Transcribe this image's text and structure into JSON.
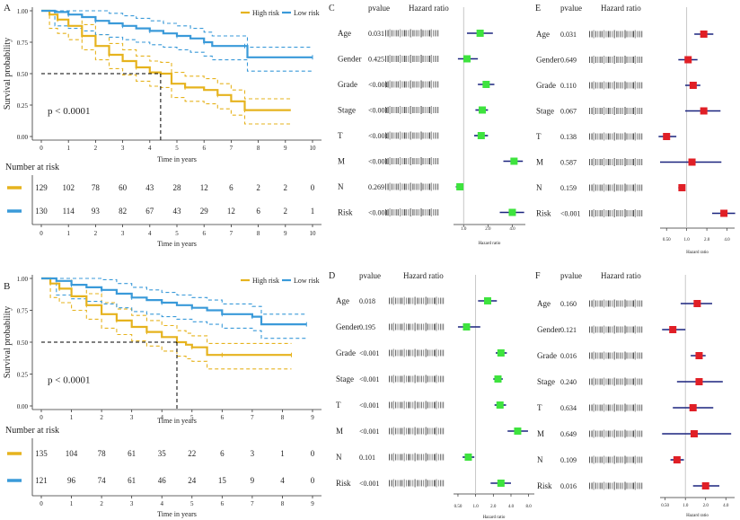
{
  "colors": {
    "high": "#E6B31E",
    "low": "#3A9AD9",
    "green": "#3EE33E",
    "red": "#E01F26",
    "ci": "#1A237E",
    "axis": "#333333",
    "grid": "#BBBBBB"
  },
  "km_panels": [
    {
      "panel_label": "A",
      "ylabel": "Survival probability",
      "xlabel": "Time in years",
      "p_value_text": "p < 0.0001",
      "legend": {
        "high": "High risk",
        "low": "Low risk"
      },
      "x_ticks": [
        "0",
        "1",
        "2",
        "3",
        "4",
        "5",
        "6",
        "7",
        "8",
        "9",
        "10"
      ],
      "y_ticks": [
        "0.00",
        "0.25",
        "0.50",
        "0.75",
        "1.00"
      ],
      "risk_table_title": "Number at risk",
      "risk_counts_high": [
        "129",
        "102",
        "78",
        "60",
        "43",
        "28",
        "12",
        "6",
        "2",
        "2",
        "0"
      ],
      "risk_counts_low": [
        "130",
        "114",
        "93",
        "82",
        "67",
        "43",
        "29",
        "12",
        "6",
        "2",
        "1"
      ],
      "risk_xlabel": "Time in years",
      "risk_x_ticks": [
        "0",
        "1",
        "2",
        "3",
        "4",
        "5",
        "6",
        "7",
        "8",
        "9",
        "10"
      ],
      "median_survival_high": 4.4,
      "chart_data": {
        "type": "line",
        "x_range": [
          0,
          10
        ],
        "y_range": [
          0,
          1
        ],
        "series": [
          {
            "name": "High risk",
            "x": [
              0,
              0.3,
              0.6,
              1,
              1.5,
              2,
              2.5,
              3,
              3.5,
              4,
              4.4,
              4.8,
              5.3,
              6,
              6.5,
              7,
              7.5,
              9.2
            ],
            "y": [
              1,
              0.97,
              0.93,
              0.88,
              0.8,
              0.72,
              0.65,
              0.6,
              0.55,
              0.51,
              0.5,
              0.42,
              0.39,
              0.37,
              0.33,
              0.28,
              0.21,
              0.21
            ]
          },
          {
            "name": "Low risk",
            "x": [
              0,
              0.5,
              1,
              1.5,
              2,
              2.5,
              3,
              3.5,
              4,
              4.5,
              5,
              5.5,
              6,
              6.3,
              7.5,
              7.6,
              10
            ],
            "y": [
              1,
              0.99,
              0.97,
              0.95,
              0.92,
              0.9,
              0.88,
              0.86,
              0.84,
              0.82,
              0.8,
              0.78,
              0.75,
              0.72,
              0.72,
              0.63,
              0.63
            ]
          }
        ]
      }
    },
    {
      "panel_label": "B",
      "ylabel": "Survival probability",
      "xlabel": "Time in years",
      "p_value_text": "p < 0.0001",
      "legend": {
        "high": "High risk",
        "low": "Low risk"
      },
      "x_ticks": [
        "0",
        "1",
        "2",
        "3",
        "4",
        "5",
        "6",
        "7",
        "8",
        "9"
      ],
      "y_ticks": [
        "0.00",
        "0.25",
        "0.50",
        "0.75",
        "1.00"
      ],
      "risk_table_title": "Number at risk",
      "risk_counts_high": [
        "135",
        "104",
        "78",
        "61",
        "35",
        "22",
        "6",
        "3",
        "1",
        "0"
      ],
      "risk_counts_low": [
        "121",
        "96",
        "74",
        "61",
        "46",
        "24",
        "15",
        "9",
        "4",
        "0"
      ],
      "risk_xlabel": "Time in years",
      "risk_x_ticks": [
        "0",
        "1",
        "2",
        "3",
        "4",
        "5",
        "6",
        "7",
        "8",
        "9"
      ],
      "median_survival_high": 4.5,
      "chart_data": {
        "type": "line",
        "x_range": [
          0,
          9
        ],
        "y_range": [
          0,
          1
        ],
        "series": [
          {
            "name": "High risk",
            "x": [
              0,
              0.3,
              0.6,
              1,
              1.5,
              2,
              2.5,
              3,
              3.5,
              4,
              4.5,
              4.8,
              5,
              5.5,
              6,
              7,
              8.3
            ],
            "y": [
              1,
              0.96,
              0.92,
              0.86,
              0.79,
              0.72,
              0.67,
              0.62,
              0.58,
              0.54,
              0.5,
              0.48,
              0.46,
              0.4,
              0.4,
              0.4,
              0.4
            ]
          },
          {
            "name": "Low risk",
            "x": [
              0,
              0.5,
              1,
              1.5,
              2,
              2.5,
              3,
              3.5,
              4,
              4.5,
              5,
              5.5,
              6,
              6.5,
              7,
              7.3,
              8.8
            ],
            "y": [
              1,
              0.98,
              0.95,
              0.93,
              0.91,
              0.88,
              0.85,
              0.83,
              0.81,
              0.79,
              0.77,
              0.75,
              0.72,
              0.72,
              0.7,
              0.64,
              0.64
            ]
          }
        ]
      }
    }
  ],
  "forest_panels": [
    {
      "panel_label": "C",
      "pvalue_header": "pvalue",
      "hr_header": "Hazard ratio",
      "xlabel": "Hazard ratio",
      "x_ticks": [
        "1.0",
        "2.0",
        "4.0"
      ],
      "x_tick_values": [
        1,
        2,
        4
      ],
      "x_min": 0.75,
      "x_max": 5.8,
      "ref": 1,
      "marker": "green",
      "rows": [
        {
          "variable": "Age",
          "pvalue": "0.031",
          "hr": 1.6,
          "lo": 1.1,
          "hi": 2.3
        },
        {
          "variable": "Gender",
          "pvalue": "0.425",
          "hr": 1.1,
          "lo": 0.85,
          "hi": 1.5
        },
        {
          "variable": "Grade",
          "pvalue": "<0.001",
          "hr": 1.9,
          "lo": 1.5,
          "hi": 2.4
        },
        {
          "variable": "Stage",
          "pvalue": "<0.001",
          "hr": 1.7,
          "lo": 1.4,
          "hi": 2.0
        },
        {
          "variable": "T",
          "pvalue": "<0.001",
          "hr": 1.65,
          "lo": 1.35,
          "hi": 2.0
        },
        {
          "variable": "M",
          "pvalue": "<0.001",
          "hr": 4.2,
          "lo": 3.1,
          "hi": 5.4
        },
        {
          "variable": "N",
          "pvalue": "0.269",
          "hr": 0.9,
          "lo": 0.8,
          "hi": 0.95
        },
        {
          "variable": "Risk",
          "pvalue": "<0.001",
          "hr": 4.0,
          "lo": 2.8,
          "hi": 5.6
        }
      ]
    },
    {
      "panel_label": "E",
      "pvalue_header": "pvalue",
      "hr_header": "Hazard ratio",
      "xlabel": "Hazard ratio",
      "x_ticks": [
        "0.50",
        "1.0",
        "2.0",
        "4.0"
      ],
      "x_tick_values": [
        0.5,
        1,
        2,
        4
      ],
      "x_min": 0.4,
      "x_max": 5.2,
      "ref": 1,
      "marker": "red",
      "rows": [
        {
          "variable": "Age",
          "pvalue": "0.031",
          "hr": 1.8,
          "lo": 1.3,
          "hi": 2.5
        },
        {
          "variable": "Gender",
          "pvalue": "0.649",
          "hr": 1.05,
          "lo": 0.75,
          "hi": 1.45
        },
        {
          "variable": "Grade",
          "pvalue": "0.110",
          "hr": 1.25,
          "lo": 0.95,
          "hi": 1.6
        },
        {
          "variable": "Stage",
          "pvalue": "0.067",
          "hr": 1.8,
          "lo": 0.95,
          "hi": 3.2
        },
        {
          "variable": "T",
          "pvalue": "0.138",
          "hr": 0.5,
          "lo": 0.38,
          "hi": 0.7
        },
        {
          "variable": "M",
          "pvalue": "0.587",
          "hr": 1.2,
          "lo": 0.4,
          "hi": 3.3
        },
        {
          "variable": "N",
          "pvalue": "0.159",
          "hr": 0.85,
          "lo": 0.75,
          "hi": 0.95
        },
        {
          "variable": "Risk",
          "pvalue": "<0.001",
          "hr": 3.6,
          "lo": 2.4,
          "hi": 5.3
        }
      ]
    },
    {
      "panel_label": "D",
      "pvalue_header": "pvalue",
      "hr_header": "Hazard ratio",
      "xlabel": "Hazard ratio",
      "x_ticks": [
        "0.50",
        "1.0",
        "2.0",
        "4.0",
        "8.0"
      ],
      "x_tick_values": [
        0.5,
        1,
        2,
        4,
        8
      ],
      "x_min": 0.42,
      "x_max": 10,
      "ref": 1,
      "marker": "green",
      "rows": [
        {
          "variable": "Age",
          "pvalue": "0.018",
          "hr": 1.6,
          "lo": 1.1,
          "hi": 2.3
        },
        {
          "variable": "Gender",
          "pvalue": "0.195",
          "hr": 0.7,
          "lo": 0.5,
          "hi": 1.2
        },
        {
          "variable": "Grade",
          "pvalue": "<0.001",
          "hr": 2.7,
          "lo": 2.2,
          "hi": 3.4
        },
        {
          "variable": "Stage",
          "pvalue": "<0.001",
          "hr": 2.4,
          "lo": 2.0,
          "hi": 2.9
        },
        {
          "variable": "T",
          "pvalue": "<0.001",
          "hr": 2.6,
          "lo": 2.1,
          "hi": 3.3
        },
        {
          "variable": "M",
          "pvalue": "<0.001",
          "hr": 5.2,
          "lo": 3.5,
          "hi": 7.8
        },
        {
          "variable": "N",
          "pvalue": "0.101",
          "hr": 0.75,
          "lo": 0.6,
          "hi": 0.95
        },
        {
          "variable": "Risk",
          "pvalue": "<0.001",
          "hr": 2.7,
          "lo": 1.8,
          "hi": 4.0
        }
      ]
    },
    {
      "panel_label": "F",
      "pvalue_header": "pvalue",
      "hr_header": "Hazard ratio",
      "xlabel": "Hazard ratio",
      "x_ticks": [
        "0.50",
        "1.0",
        "2.0",
        "4.0"
      ],
      "x_tick_values": [
        0.5,
        1,
        2,
        4
      ],
      "x_min": 0.42,
      "x_max": 5.4,
      "ref": 1,
      "marker": "red",
      "rows": [
        {
          "variable": "Age",
          "pvalue": "0.160",
          "hr": 1.5,
          "lo": 0.85,
          "hi": 2.5
        },
        {
          "variable": "Gender",
          "pvalue": "0.121",
          "hr": 0.65,
          "lo": 0.45,
          "hi": 1.0
        },
        {
          "variable": "Grade",
          "pvalue": "0.016",
          "hr": 1.6,
          "lo": 1.2,
          "hi": 2.0
        },
        {
          "variable": "Stage",
          "pvalue": "0.240",
          "hr": 1.6,
          "lo": 0.75,
          "hi": 3.6
        },
        {
          "variable": "T",
          "pvalue": "0.634",
          "hr": 1.3,
          "lo": 0.65,
          "hi": 2.6
        },
        {
          "variable": "M",
          "pvalue": "0.649",
          "hr": 1.35,
          "lo": 0.45,
          "hi": 4.8
        },
        {
          "variable": "N",
          "pvalue": "0.109",
          "hr": 0.75,
          "lo": 0.6,
          "hi": 0.95
        },
        {
          "variable": "Risk",
          "pvalue": "0.016",
          "hr": 2.0,
          "lo": 1.3,
          "hi": 3.2
        }
      ]
    }
  ]
}
